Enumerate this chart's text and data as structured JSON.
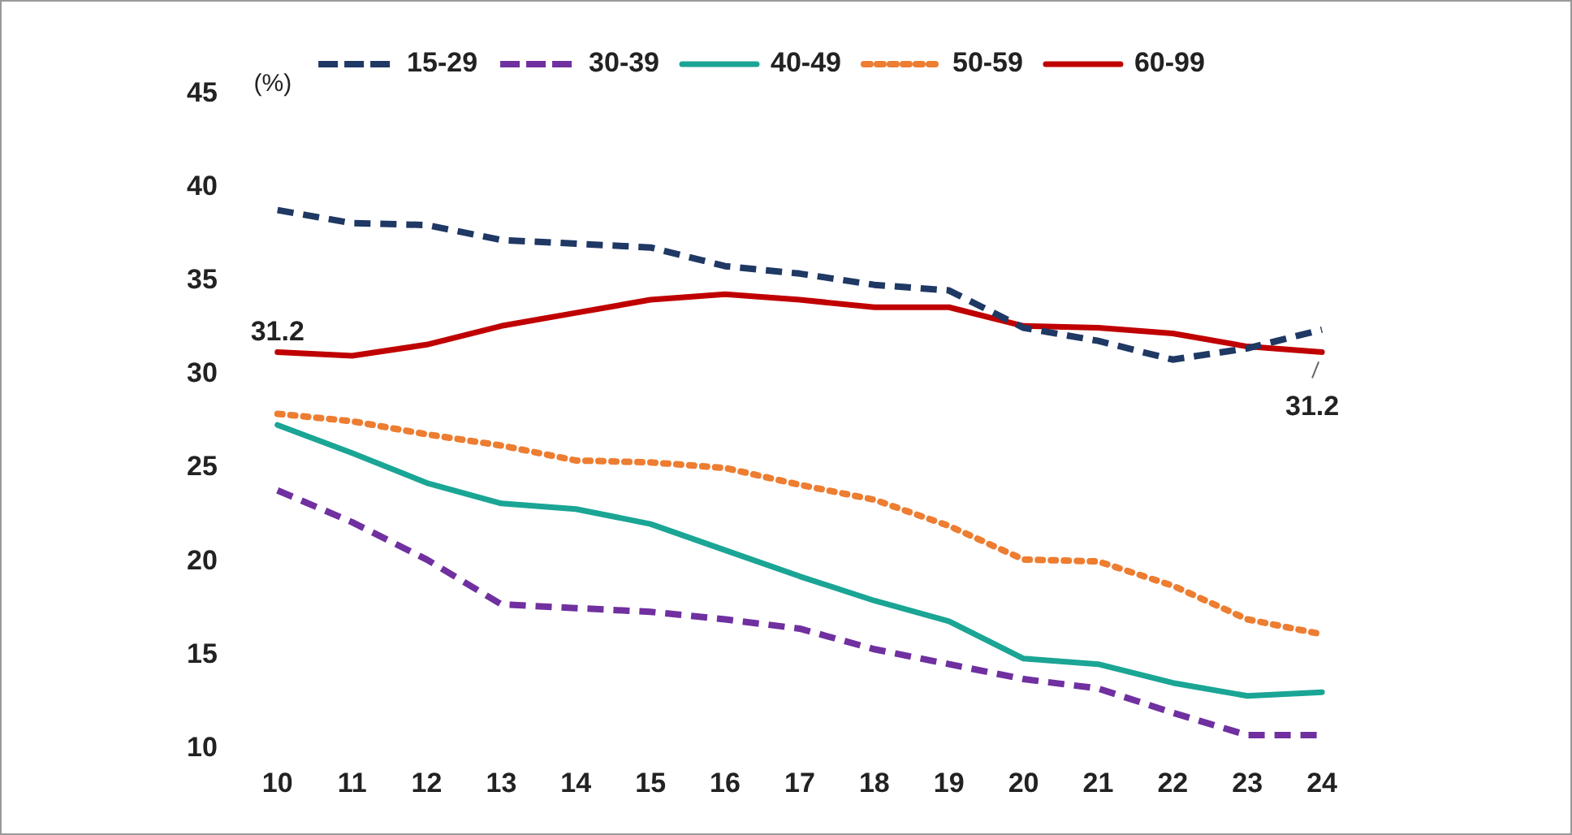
{
  "chart_data": {
    "type": "line",
    "ylabel": "(%)",
    "categories": [
      "10",
      "11",
      "12",
      "13",
      "14",
      "15",
      "16",
      "17",
      "18",
      "19",
      "20",
      "21",
      "22",
      "23",
      "24"
    ],
    "ylim": [
      10,
      45
    ],
    "yticks": [
      10,
      15,
      20,
      25,
      30,
      35,
      40,
      45
    ],
    "grid": false,
    "legend": "top",
    "marker": "none",
    "series": [
      {
        "name": "15-29",
        "color": "#1f3864",
        "line_style": "dashed",
        "values": [
          38.8,
          38.1,
          38.0,
          37.2,
          37.0,
          36.8,
          35.8,
          35.4,
          34.8,
          34.5,
          32.5,
          31.8,
          30.8,
          31.4,
          32.4
        ]
      },
      {
        "name": "30-39",
        "color": "#7030a0",
        "line_style": "dashed",
        "values": [
          23.8,
          22.1,
          20.1,
          17.7,
          17.5,
          17.3,
          16.9,
          16.4,
          15.3,
          14.5,
          13.7,
          13.2,
          11.9,
          10.7,
          10.7
        ]
      },
      {
        "name": "40-49",
        "color": "#1aa595",
        "line_style": "solid",
        "values": [
          27.3,
          25.8,
          24.2,
          23.1,
          22.8,
          22.0,
          20.6,
          19.2,
          17.9,
          16.8,
          14.8,
          14.5,
          13.5,
          12.8,
          13.0
        ]
      },
      {
        "name": "50-59",
        "color": "#ed7d31",
        "line_style": "dotted",
        "values": [
          27.9,
          27.5,
          26.8,
          26.2,
          25.4,
          25.3,
          25.0,
          24.1,
          23.3,
          21.9,
          20.1,
          20.0,
          18.7,
          16.9,
          16.1
        ]
      },
      {
        "name": "60-99",
        "color": "#c00000",
        "line_style": "solid",
        "values": [
          31.2,
          31.0,
          31.6,
          32.6,
          33.3,
          34.0,
          34.3,
          34.0,
          33.6,
          33.6,
          32.6,
          32.5,
          32.2,
          31.5,
          31.2
        ]
      }
    ],
    "annotations": [
      {
        "text": "31.2",
        "x": "10",
        "y": 31.2
      },
      {
        "text": "31.2",
        "x": "24",
        "y": 31.2
      }
    ]
  }
}
